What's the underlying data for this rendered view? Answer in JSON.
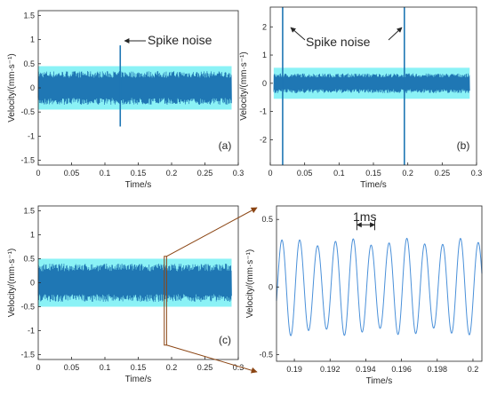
{
  "colors": {
    "signal": "#1f77b4",
    "signal_halo": "#18e6ee",
    "zoom_lines": "#8b4513",
    "axes": "#262626",
    "panel_tag_box": "#ffffff"
  },
  "annotations": {
    "spike_a": "Spike noise",
    "spike_b": "Spike noise",
    "period": "1ms"
  },
  "chart_data": [
    {
      "id": "a",
      "type": "line",
      "panel_label": "(a)",
      "xlabel": "Time/s",
      "ylabel": "Velocity/(mm·s⁻¹)",
      "xlim": [
        0,
        0.3
      ],
      "ylim": [
        -1.6,
        1.6
      ],
      "xticks": [
        "0",
        "0.05",
        "0.1",
        "0.15",
        "0.2",
        "0.25",
        "0.3"
      ],
      "yticks": [
        "-1.5",
        "-1",
        "-0.5",
        "0",
        "0.5",
        "1",
        "1.5"
      ],
      "signal": {
        "x_range": [
          0,
          0.29
        ],
        "envelope_amplitude": 0.35,
        "fill_band": 0.45
      },
      "spikes": [
        {
          "x": 0.123,
          "peak": 0.88,
          "trough": -0.8
        }
      ]
    },
    {
      "id": "b",
      "type": "line",
      "panel_label": "(b)",
      "xlabel": "Time/s",
      "ylabel": "Velocity/(mm·s⁻¹)",
      "xlim": [
        0,
        0.3
      ],
      "ylim": [
        -2.9,
        2.7
      ],
      "xticks": [
        "0",
        "0.05",
        "0.1",
        "0.15",
        "0.2",
        "0.25",
        "0.3"
      ],
      "yticks": [
        "-2",
        "-1",
        "0",
        "1",
        "2"
      ],
      "signal": {
        "x_range": [
          0.005,
          0.29
        ],
        "envelope_amplitude": 0.35,
        "fill_band": 0.55
      },
      "spikes": [
        {
          "x": 0.018,
          "peak": 2.7,
          "trough": -2.9
        },
        {
          "x": 0.195,
          "peak": 2.7,
          "trough": -2.9
        }
      ]
    },
    {
      "id": "c",
      "type": "line",
      "panel_label": "(c)",
      "xlabel": "Time/s",
      "ylabel": "Velocity/(mm·s⁻¹)",
      "xlim": [
        0,
        0.3
      ],
      "ylim": [
        -1.6,
        1.6
      ],
      "xticks": [
        "0",
        "0.05",
        "0.1",
        "0.15",
        "0.2",
        "0.25",
        "0.3"
      ],
      "yticks": [
        "-1.5",
        "-1",
        "-0.5",
        "0",
        "0.5",
        "1",
        "1.5"
      ],
      "signal": {
        "x_range": [
          0,
          0.29
        ],
        "envelope_amplitude": 0.4,
        "fill_band": 0.5
      },
      "spikes": [],
      "zoom_box": {
        "x": [
          0.189,
          0.1925
        ],
        "y": [
          -1.3,
          0.55
        ]
      }
    },
    {
      "id": "d",
      "type": "line",
      "panel_label": "",
      "xlabel": "Time/s",
      "ylabel": "Velocity/(mm·s⁻¹)",
      "xlim": [
        0.189,
        0.2005
      ],
      "ylim": [
        -0.55,
        0.6
      ],
      "xticks": [
        "0.19",
        "0.192",
        "0.194",
        "0.196",
        "0.198",
        "0.2"
      ],
      "xtick_values": [
        0.19,
        0.192,
        0.194,
        0.196,
        0.198,
        0.2
      ],
      "yticks": [
        "-0.5",
        "0",
        "0.5"
      ],
      "ytick_values": [
        -0.5,
        0,
        0.5
      ],
      "sine": {
        "frequency_hz": 1000,
        "amplitude": 0.35
      },
      "period_marker": {
        "x": [
          0.1935,
          0.1945
        ],
        "y": 0.46
      }
    }
  ]
}
